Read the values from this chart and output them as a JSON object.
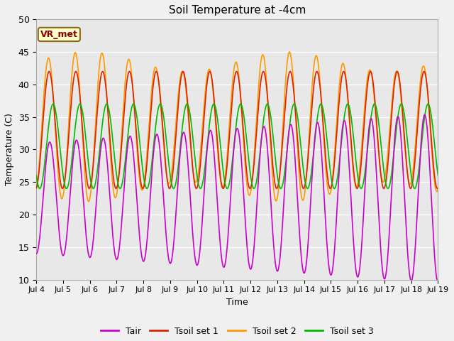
{
  "title": "Soil Temperature at -4cm",
  "xlabel": "Time",
  "ylabel": "Temperature (C)",
  "ylim": [
    10,
    50
  ],
  "xlim": [
    0,
    15
  ],
  "outer_bg": "#f0f0f0",
  "plot_bg_color": "#e8e8e8",
  "grid_color": "white",
  "annotation_text": "VR_met",
  "annotation_bg": "#ffffcc",
  "annotation_border": "#8B6914",
  "annotation_text_color": "#8B0000",
  "xtick_labels": [
    "Jul 4",
    "Jul 5",
    "Jul 6",
    "Jul 7",
    "Jul 8",
    "Jul 9",
    "Jul 10",
    "Jul 11",
    "Jul 12",
    "Jul 13",
    "Jul 14",
    "Jul 15",
    "Jul 16",
    "Jul 17",
    "Jul 18",
    "Jul 19"
  ],
  "legend_entries": [
    "Tair",
    "Tsoil set 1",
    "Tsoil set 2",
    "Tsoil set 3"
  ],
  "line_colors": [
    "#cc00cc",
    "#dd2200",
    "#ff9900",
    "#00bb00"
  ],
  "n_days": 15,
  "samples_per_day": 144
}
